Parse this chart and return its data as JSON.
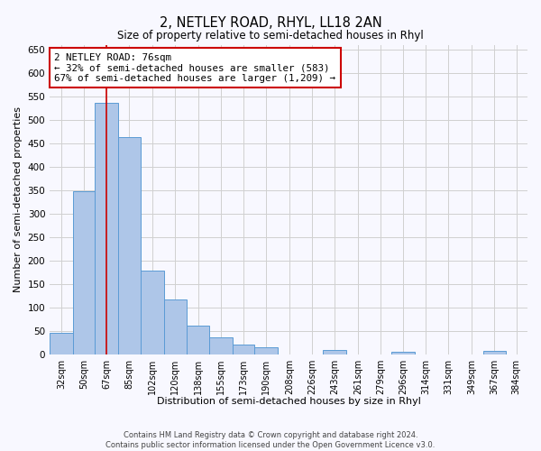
{
  "title": "2, NETLEY ROAD, RHYL, LL18 2AN",
  "subtitle": "Size of property relative to semi-detached houses in Rhyl",
  "xlabel": "Distribution of semi-detached houses by size in Rhyl",
  "ylabel": "Number of semi-detached properties",
  "bin_labels": [
    "32sqm",
    "50sqm",
    "67sqm",
    "85sqm",
    "102sqm",
    "120sqm",
    "138sqm",
    "155sqm",
    "173sqm",
    "190sqm",
    "208sqm",
    "226sqm",
    "243sqm",
    "261sqm",
    "279sqm",
    "296sqm",
    "314sqm",
    "331sqm",
    "349sqm",
    "367sqm",
    "384sqm"
  ],
  "bin_edges": [
    32,
    50,
    67,
    85,
    102,
    120,
    138,
    155,
    173,
    190,
    208,
    226,
    243,
    261,
    279,
    296,
    314,
    331,
    349,
    367,
    384
  ],
  "bar_heights": [
    46,
    348,
    537,
    464,
    178,
    118,
    62,
    36,
    22,
    15,
    0,
    0,
    10,
    0,
    0,
    5,
    0,
    0,
    0,
    8,
    0
  ],
  "bar_color": "#aec6e8",
  "bar_edge_color": "#5b9bd5",
  "grid_color": "#d0d0d0",
  "background_color": "#f8f8ff",
  "property_size": 76,
  "red_line_color": "#cc0000",
  "annotation_line1": "2 NETLEY ROAD: 76sqm",
  "annotation_line2": "← 32% of semi-detached houses are smaller (583)",
  "annotation_line3": "67% of semi-detached houses are larger (1,209) →",
  "annotation_box_color": "#ffffff",
  "annotation_box_edge_color": "#cc0000",
  "ylim": [
    0,
    660
  ],
  "yticks": [
    0,
    50,
    100,
    150,
    200,
    250,
    300,
    350,
    400,
    450,
    500,
    550,
    600,
    650
  ],
  "footer_line1": "Contains HM Land Registry data © Crown copyright and database right 2024.",
  "footer_line2": "Contains public sector information licensed under the Open Government Licence v3.0."
}
